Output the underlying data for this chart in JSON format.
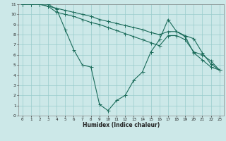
{
  "xlabel": "Humidex (Indice chaleur)",
  "bg_color": "#cce8e8",
  "grid_color": "#99cccc",
  "line_color": "#1a6b5a",
  "xlim": [
    -0.5,
    23.5
  ],
  "ylim": [
    0,
    11
  ],
  "xticks": [
    0,
    1,
    2,
    3,
    4,
    5,
    6,
    7,
    8,
    9,
    10,
    11,
    12,
    13,
    14,
    15,
    16,
    17,
    18,
    19,
    20,
    21,
    22,
    23
  ],
  "yticks": [
    0,
    1,
    2,
    3,
    4,
    5,
    6,
    7,
    8,
    9,
    10,
    11
  ],
  "line1_x": [
    0,
    1,
    2,
    3,
    4,
    5,
    6,
    7,
    8,
    9,
    10,
    11,
    12,
    13,
    14,
    15,
    16,
    17,
    18,
    19,
    20,
    21,
    22,
    23
  ],
  "line1_y": [
    11,
    11,
    11,
    10.8,
    10.6,
    10.4,
    10.2,
    10.0,
    9.8,
    9.5,
    9.3,
    9.1,
    8.9,
    8.7,
    8.5,
    8.2,
    8.0,
    8.3,
    8.3,
    7.9,
    7.6,
    6.2,
    5.1,
    4.5
  ],
  "line2_x": [
    0,
    1,
    2,
    3,
    4,
    5,
    6,
    7,
    8,
    9,
    10,
    11,
    12,
    13,
    14,
    15,
    16,
    17,
    18,
    19,
    20,
    21,
    22,
    23
  ],
  "line2_y": [
    11,
    11,
    11,
    11,
    10.5,
    8.5,
    6.5,
    5.0,
    4.8,
    1.1,
    0.5,
    1.5,
    2.0,
    3.5,
    4.3,
    6.3,
    7.5,
    9.5,
    8.3,
    7.8,
    6.2,
    5.5,
    4.8,
    4.5
  ],
  "line3_x": [
    0,
    1,
    2,
    3,
    4,
    5,
    6,
    7,
    8,
    9,
    10,
    11,
    12,
    13,
    14,
    15,
    16,
    17,
    18,
    19,
    20,
    21,
    22,
    23
  ],
  "line3_y": [
    11,
    11,
    11,
    10.8,
    10.2,
    10.0,
    9.8,
    9.5,
    9.2,
    9.0,
    8.7,
    8.4,
    8.1,
    7.8,
    7.5,
    7.2,
    6.9,
    7.9,
    7.9,
    7.5,
    6.3,
    6.0,
    5.4,
    4.5
  ]
}
